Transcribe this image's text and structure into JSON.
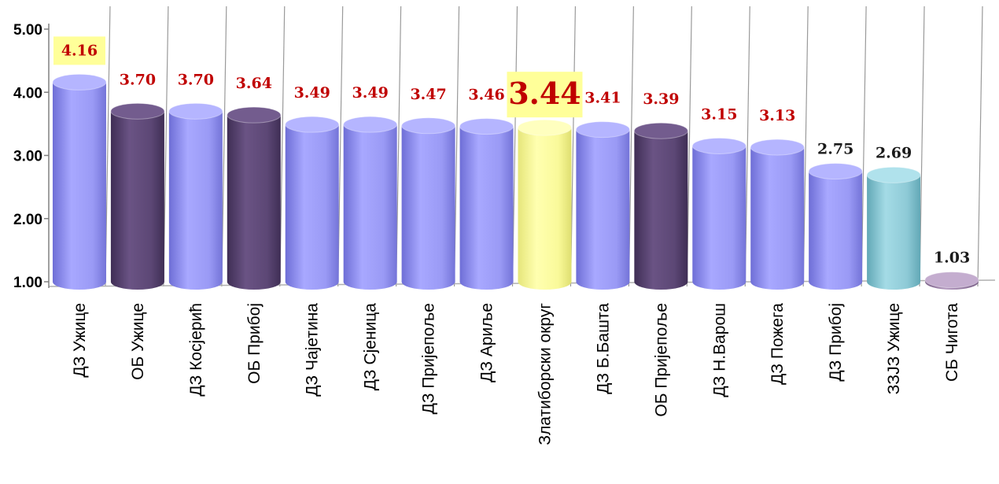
{
  "chart_data": {
    "type": "bar",
    "style": "3d-cylinder",
    "categories": [
      "ДЗ Ужице",
      "ОБ Ужице",
      "ДЗ Косјерић",
      "ОБ Прибој",
      "ДЗ Чајетина",
      "ДЗ Сјеница",
      "ДЗ Пријепоље",
      "ДЗ Ариље",
      "Златиборски округ",
      "ДЗ Б.Башта",
      "ОБ Пријепоље",
      "ДЗ Н.Варош",
      "ДЗ Пожега",
      "ДЗ Прибој",
      "ЗЗЈЗ Ужице",
      "СБ Чигота"
    ],
    "values": [
      4.16,
      3.7,
      3.7,
      3.64,
      3.49,
      3.49,
      3.47,
      3.46,
      3.44,
      3.41,
      3.39,
      3.15,
      3.13,
      2.75,
      2.69,
      1.03
    ],
    "value_labels": [
      "4.16",
      "3.70",
      "3.70",
      "3.64",
      "3.49",
      "3.49",
      "3.47",
      "3.46",
      "3.44",
      "3.41",
      "3.39",
      "3.15",
      "3.13",
      "2.75",
      "2.69",
      "1.03"
    ],
    "bar_kind": [
      "dz",
      "ob",
      "dz",
      "ob",
      "dz",
      "dz",
      "dz",
      "dz",
      "okrug",
      "dz",
      "ob",
      "dz",
      "dz",
      "dz",
      "zzjz",
      "sb"
    ],
    "label_style": [
      "highlight",
      "red",
      "red",
      "red",
      "red",
      "red",
      "red",
      "red",
      "highlight-big",
      "red",
      "red",
      "red",
      "red",
      "black",
      "black",
      "black"
    ],
    "ylim": [
      1,
      5
    ],
    "yticks": [
      "1.00",
      "2.00",
      "3.00",
      "4.00",
      "5.00"
    ],
    "grid": "vertical",
    "legend": "none",
    "title": "",
    "xlabel": "",
    "ylabel": "",
    "colors": {
      "dz": "#9a9af5",
      "ob": "#5c4775",
      "okrug": "#fafa9a",
      "zzjz": "#8ecad6",
      "sb": "#9c7fa8",
      "label_red": "#c00000",
      "label_black": "#1a1a1a",
      "highlight_bg": "#ffff99",
      "grid": "#9a9a9a"
    }
  }
}
